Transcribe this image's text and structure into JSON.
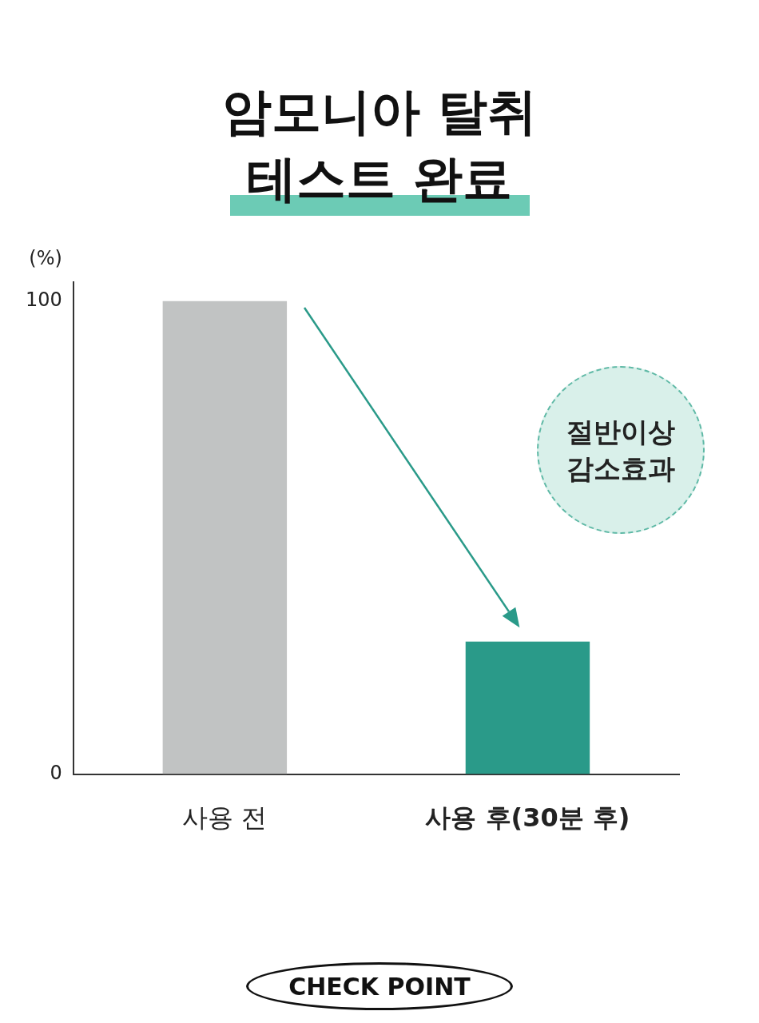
{
  "chart_data": {
    "type": "bar",
    "title": "암모니아 탈취\n테스트 완료",
    "ylabel": "(%)",
    "categories": [
      "사용 전",
      "사용 후(30분 후)"
    ],
    "values": [
      100,
      28
    ],
    "colors": [
      "#c1c3c3",
      "#2a9a89"
    ],
    "ylim": [
      0,
      104
    ],
    "yticks": [
      0,
      100
    ],
    "grid": false,
    "legend": false,
    "annotations": [
      "절반이상 감소효과",
      "CHECK POINT"
    ]
  }
}
